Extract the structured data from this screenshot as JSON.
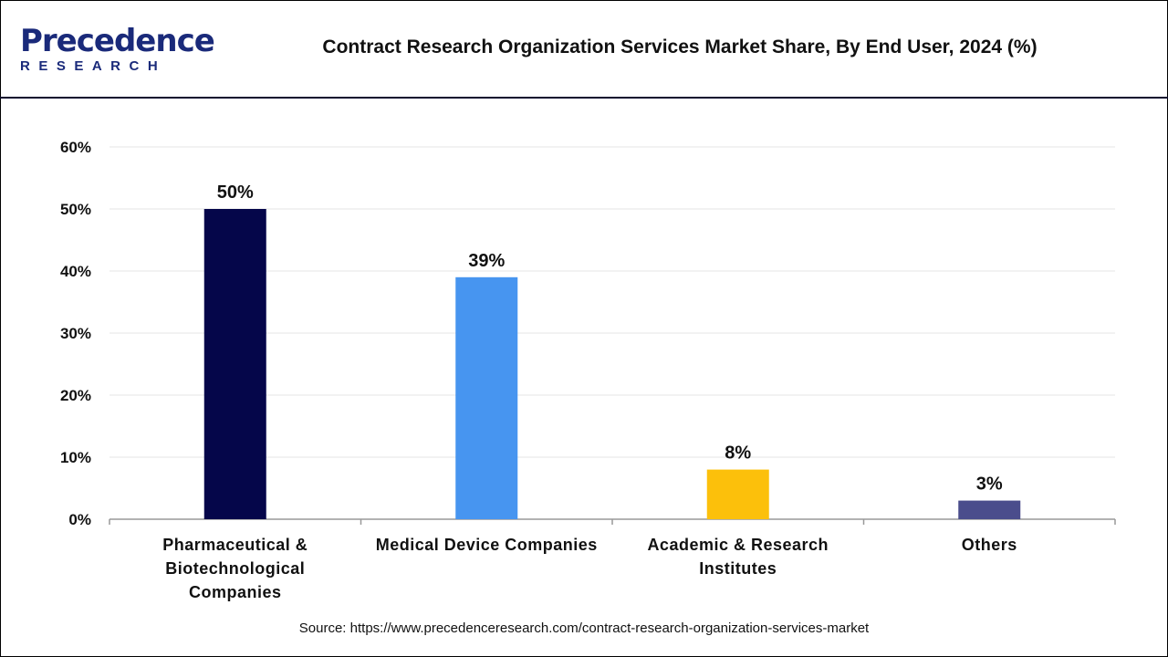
{
  "logo": {
    "top": "Precedence",
    "bottom": "RESEARCH"
  },
  "colors": {
    "Pharmaceutical": "#05064a",
    "Medical": "#4795f0",
    "Academic": "#fcc00b",
    "Others": "#4a4d8c",
    "grid": "#e6e6e6"
  },
  "chart_data": {
    "type": "bar",
    "title": "Contract Research Organization Services Market Share, By End User, 2024 (%)",
    "categories": [
      [
        "Pharmaceutical &",
        "Biotechnological",
        "Companies"
      ],
      [
        "Medical Device Companies"
      ],
      [
        "Academic & Research",
        "Institutes"
      ],
      [
        "Others"
      ]
    ],
    "values": [
      50,
      39,
      8,
      3
    ],
    "data_labels": [
      "50%",
      "39%",
      "8%",
      "3%"
    ],
    "bar_colors": [
      "#05064a",
      "#4795f0",
      "#fcc00b",
      "#4a4d8c"
    ],
    "ylim": [
      0,
      60
    ],
    "yticks": [
      "0%",
      "10%",
      "20%",
      "30%",
      "40%",
      "50%",
      "60%"
    ],
    "grid": true,
    "legend": "none"
  },
  "source": "Source: https://www.precedenceresearch.com/contract-research-organization-services-market"
}
